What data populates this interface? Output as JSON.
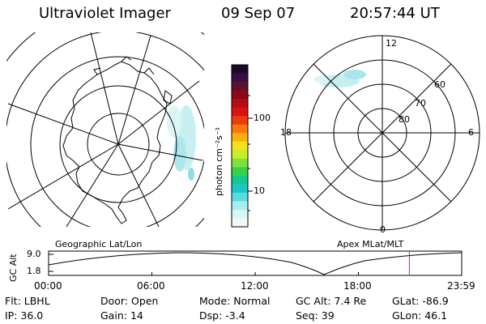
{
  "header": {
    "title": "Ultraviolet Imager",
    "date": "09 Sep 07",
    "time": "20:57:44 UT"
  },
  "colorbar": {
    "unit_label": "photon cm⁻²s⁻¹",
    "tick_labels": [
      "100",
      "10"
    ],
    "colors": [
      "#1a0a2e",
      "#3a0f3f",
      "#5a1230",
      "#8a0a12",
      "#b40c14",
      "#d81214",
      "#ee3a10",
      "#f87a0a",
      "#fbb010",
      "#f4e21a",
      "#c8ee28",
      "#7ee23c",
      "#34d24a",
      "#12c88a",
      "#1ec6c2",
      "#58dce0",
      "#a6eeee",
      "#d6f6f6",
      "#eefafa"
    ]
  },
  "polar_plot": {
    "mlt_labels": {
      "top": "12",
      "right": "6",
      "bottom": "0",
      "left": "18"
    },
    "lat_labels": [
      "60",
      "70",
      "80"
    ]
  },
  "panel_labels": {
    "left": "Geographic Lat/Lon",
    "right": "Apex MLat/MLT"
  },
  "altitude_plot": {
    "ylabel": "GC Alt",
    "yticks": [
      "9.0",
      "1.8"
    ],
    "xticks": [
      "00:00",
      "06:00",
      "12:00",
      "18:00",
      "23:59"
    ],
    "marker_hour": 20.96,
    "marker_color": "#e02020"
  },
  "info": {
    "row1": [
      {
        "label": "Flt:",
        "value": "LBHL"
      },
      {
        "label": "Door:",
        "value": "Open"
      },
      {
        "label": "Mode:",
        "value": "Normal"
      },
      {
        "label": "GC Alt:",
        "value": "7.4 Re"
      },
      {
        "label": "GLat:",
        "value": "-86.9"
      }
    ],
    "row2": [
      {
        "label": "IP:",
        "value": "36.0"
      },
      {
        "label": "Gain:",
        "value": "14"
      },
      {
        "label": "Dsp:",
        "value": "-3.4"
      },
      {
        "label": "Seq:",
        "value": "39"
      },
      {
        "label": "GLon:",
        "value": "46.1"
      }
    ]
  }
}
